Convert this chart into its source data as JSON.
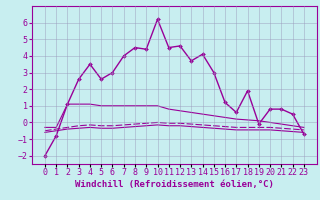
{
  "xlabel": "Windchill (Refroidissement éolien,°C)",
  "background_color": "#c8eef0",
  "grid_color": "#9999bb",
  "line_color": "#990099",
  "hours": [
    0,
    1,
    2,
    3,
    4,
    5,
    6,
    7,
    8,
    9,
    10,
    11,
    12,
    13,
    14,
    15,
    16,
    17,
    18,
    19,
    20,
    21,
    22,
    23
  ],
  "temp_main": [
    -2.0,
    -0.8,
    1.1,
    2.6,
    3.5,
    2.6,
    3.0,
    4.0,
    4.5,
    4.4,
    6.2,
    4.5,
    4.6,
    3.7,
    4.1,
    3.0,
    1.2,
    0.6,
    1.9,
    -0.1,
    0.8,
    0.8,
    0.5,
    -0.7
  ],
  "band_top": [
    -0.3,
    -0.3,
    1.1,
    1.1,
    1.1,
    1.0,
    1.0,
    1.0,
    1.0,
    1.0,
    1.0,
    0.8,
    0.7,
    0.6,
    0.5,
    0.4,
    0.3,
    0.2,
    0.15,
    0.1,
    0.0,
    -0.1,
    -0.2,
    -0.3
  ],
  "band_mid": [
    -0.5,
    -0.4,
    -0.3,
    -0.2,
    -0.15,
    -0.2,
    -0.2,
    -0.15,
    -0.1,
    -0.05,
    0.0,
    -0.05,
    -0.05,
    -0.1,
    -0.15,
    -0.2,
    -0.25,
    -0.3,
    -0.3,
    -0.3,
    -0.3,
    -0.35,
    -0.4,
    -0.45
  ],
  "band_bot": [
    -0.6,
    -0.5,
    -0.4,
    -0.35,
    -0.3,
    -0.35,
    -0.35,
    -0.3,
    -0.25,
    -0.2,
    -0.15,
    -0.2,
    -0.2,
    -0.25,
    -0.3,
    -0.35,
    -0.4,
    -0.45,
    -0.45,
    -0.45,
    -0.45,
    -0.5,
    -0.55,
    -0.6
  ],
  "ylim": [
    -2.5,
    7.0
  ],
  "yticks": [
    -2,
    -1,
    0,
    1,
    2,
    3,
    4,
    5,
    6
  ],
  "fontsize_label": 6.5,
  "fontsize_tick": 6.0
}
